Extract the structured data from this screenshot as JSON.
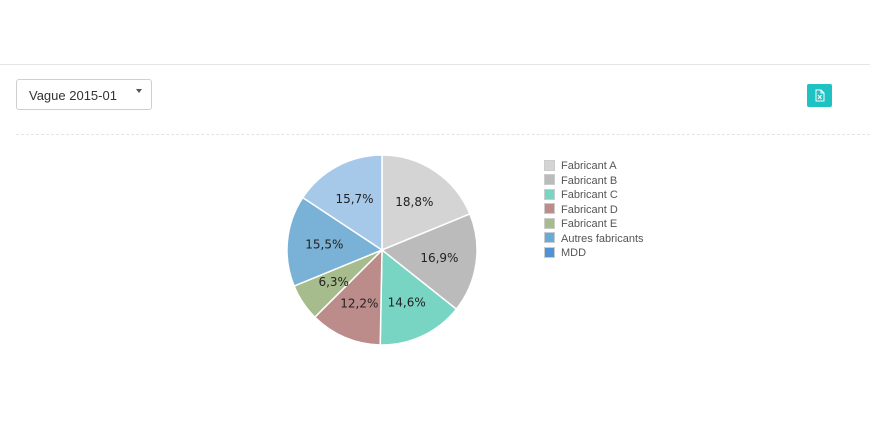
{
  "filter": {
    "selected_wave": "Vague 2015-01"
  },
  "export_button": {
    "icon": "excel-export-icon",
    "color": "#1ec2c2"
  },
  "chart_data": {
    "type": "pie",
    "start_angle_deg": 0,
    "direction": "clockwise",
    "legend_position": "right",
    "slices": [
      {
        "label": "Fabricant A",
        "value": 18.8,
        "display": "18,8%",
        "color": "#d4d4d4"
      },
      {
        "label": "Fabricant B",
        "value": 16.9,
        "display": "16,9%",
        "color": "#bbbbbb"
      },
      {
        "label": "Fabricant C",
        "value": 14.6,
        "display": "14,6%",
        "color": "#78d4c3"
      },
      {
        "label": "Fabricant D",
        "value": 12.2,
        "display": "12,2%",
        "color": "#bc8c8a"
      },
      {
        "label": "Fabricant E",
        "value": 6.3,
        "display": "6,3%",
        "color": "#a6bc8c"
      },
      {
        "label": "Autres fabricants",
        "value": 15.5,
        "display": "15,5%",
        "color": "#7ab1d6"
      },
      {
        "label": "MDD",
        "value": 15.7,
        "display": "15,7%",
        "color": "#a6c9ea"
      }
    ],
    "legend": [
      {
        "label": "Fabricant A",
        "color": "#d4d4d4"
      },
      {
        "label": "Fabricant B",
        "color": "#bbbbbb"
      },
      {
        "label": "Fabricant C",
        "color": "#78d4c3"
      },
      {
        "label": "Fabricant D",
        "color": "#bc8c8a"
      },
      {
        "label": "Fabricant E",
        "color": "#a6bc8c"
      },
      {
        "label": "Autres fabricants",
        "color": "#67acd9"
      },
      {
        "label": "MDD",
        "color": "#4f93d4"
      }
    ]
  }
}
